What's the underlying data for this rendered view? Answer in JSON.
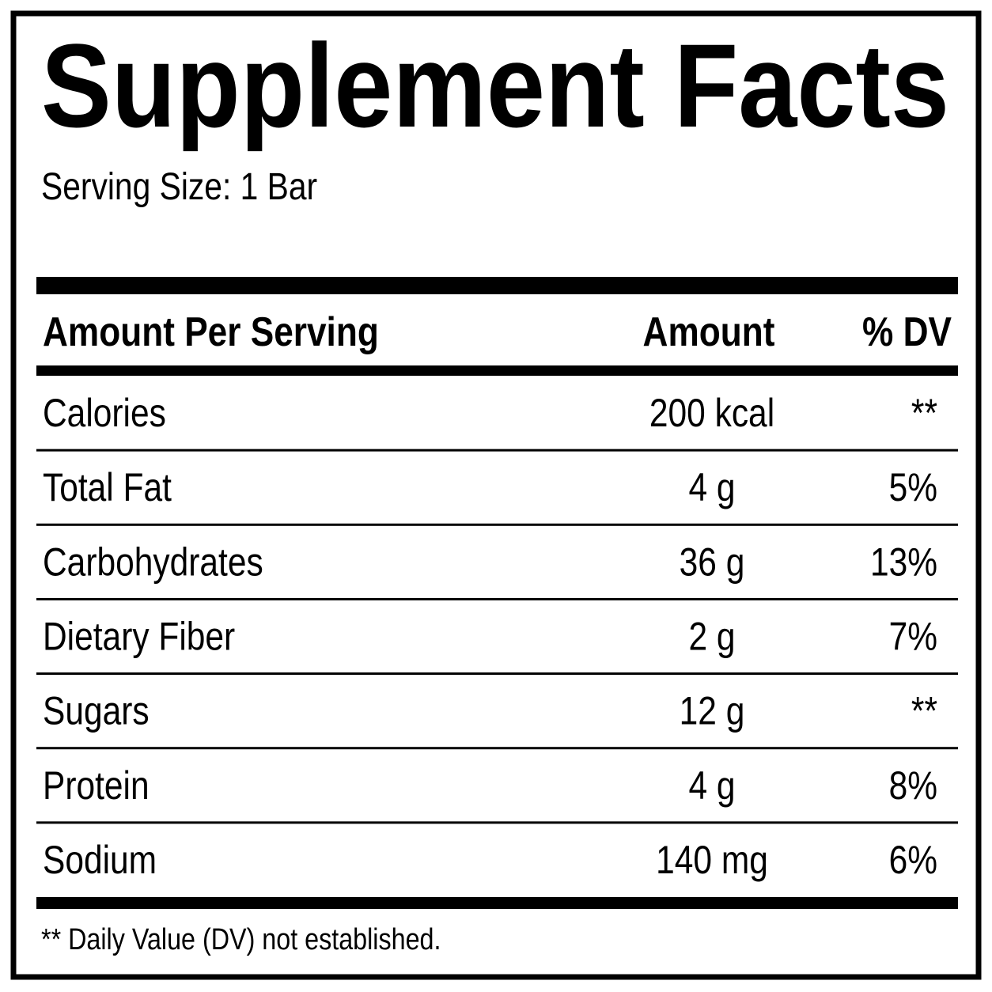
{
  "header": {
    "title": "Supplement Facts",
    "serving_size": "Serving Size: 1 Bar"
  },
  "table": {
    "columns": [
      "Amount Per Serving",
      "Amount",
      "% DV"
    ],
    "rows": [
      [
        "Calories",
        "200 kcal",
        "**"
      ],
      [
        "Total Fat",
        "4 g",
        "5%"
      ],
      [
        "Carbohydrates",
        "36 g",
        "13%"
      ],
      [
        "Dietary Fiber",
        "2 g",
        "7%"
      ],
      [
        "Sugars",
        "12 g",
        "**"
      ],
      [
        "Protein",
        "4 g",
        "8%"
      ],
      [
        "Sodium",
        "140 mg",
        "6%"
      ]
    ]
  },
  "footnote": "** Daily Value (DV) not established."
}
